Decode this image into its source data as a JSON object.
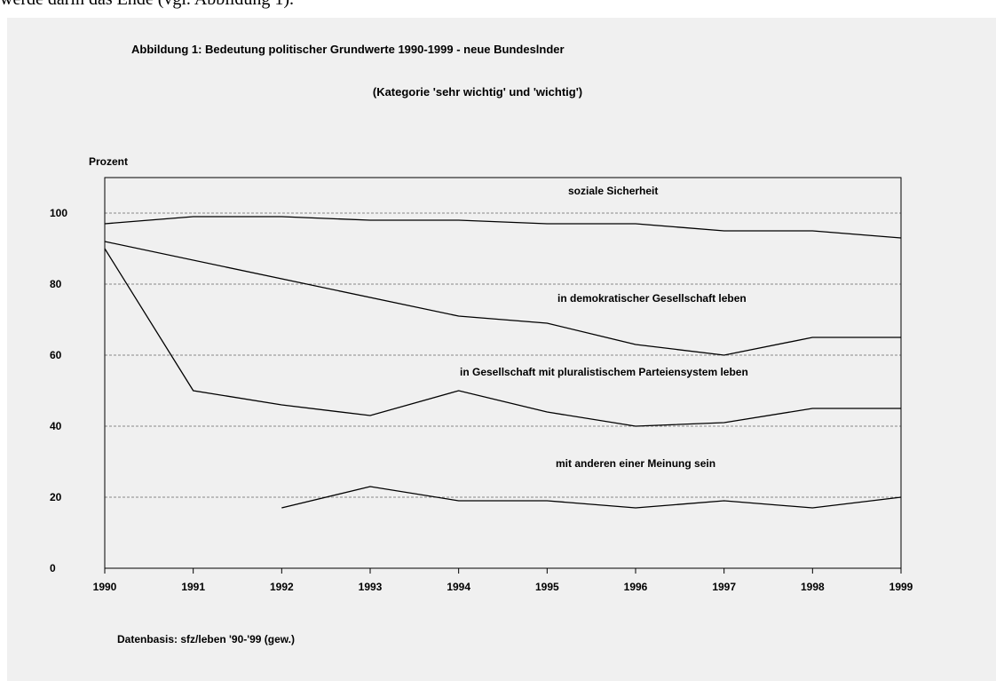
{
  "top_text": "werde darin das Ende (vgl. Abbildung 1).",
  "source_note": "Datenbasis: sfz/leben '90-'99 (gew.)",
  "chart_data": {
    "type": "line",
    "title": "Abbildung 1: Bedeutung politischer Grundwerte 1990-1999 - neue Bundeslnder",
    "subtitle": "(Kategorie 'sehr wichtig' und 'wichtig')",
    "ylabel": "Prozent",
    "xlabel": "",
    "x": [
      1990,
      1991,
      1992,
      1993,
      1994,
      1995,
      1996,
      1997,
      1998,
      1999
    ],
    "xlim": [
      1990,
      1999
    ],
    "ylim": [
      0,
      110
    ],
    "yticks": [
      0,
      20,
      40,
      60,
      80,
      100
    ],
    "grid": "horizontal dashed",
    "colors": {
      "line": "#000000",
      "background": "#f0f0f0",
      "grid": "#666666"
    },
    "series": [
      {
        "name": "soziale Sicherheit",
        "values": [
          97,
          99,
          99,
          98,
          98,
          97,
          97,
          95,
          95,
          93
        ]
      },
      {
        "name": "in demokratischer Gesellschaft leben",
        "values": [
          92,
          null,
          null,
          null,
          71,
          69,
          63,
          60,
          65,
          65
        ]
      },
      {
        "name": "in Gesellschaft mit pluralistischem Parteiensystem leben",
        "values": [
          90,
          50,
          46,
          43,
          50,
          44,
          40,
          41,
          45,
          45
        ]
      },
      {
        "name": "mit anderen einer Meinung sein",
        "values": [
          null,
          null,
          17,
          23,
          19,
          19,
          17,
          19,
          17,
          20
        ]
      }
    ]
  }
}
